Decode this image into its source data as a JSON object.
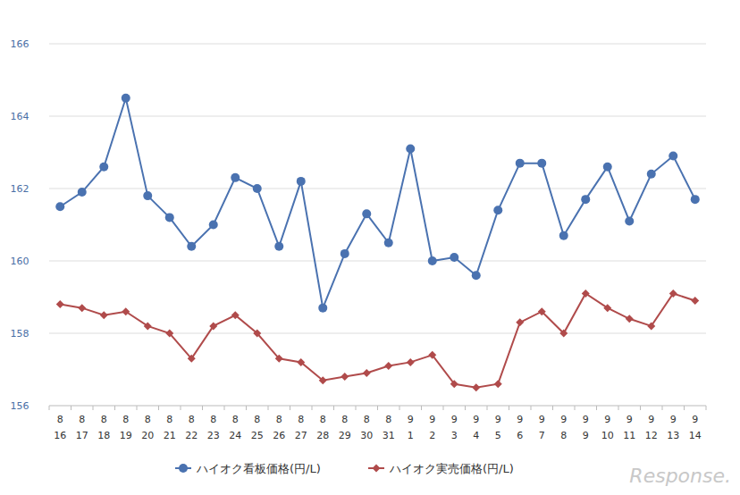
{
  "chart_data": {
    "type": "line",
    "categories": [
      "8\n16",
      "8\n17",
      "8\n18",
      "8\n19",
      "8\n20",
      "8\n21",
      "8\n22",
      "8\n23",
      "8\n24",
      "8\n25",
      "8\n26",
      "8\n27",
      "8\n28",
      "8\n29",
      "8\n30",
      "8\n31",
      "9\n1",
      "9\n2",
      "9\n3",
      "9\n4",
      "9\n5",
      "9\n6",
      "9\n7",
      "9\n8",
      "9\n9",
      "9\n10",
      "9\n11",
      "9\n12",
      "9\n13",
      "9\n14"
    ],
    "series": [
      {
        "name": "ハイオク看板価格(円/L)",
        "color": "#4a72b0",
        "marker": "circle",
        "values": [
          161.5,
          161.9,
          162.6,
          164.5,
          161.8,
          161.2,
          160.4,
          161.0,
          162.3,
          162.0,
          160.4,
          162.2,
          158.7,
          160.2,
          161.3,
          160.5,
          163.1,
          160.0,
          160.1,
          159.6,
          161.4,
          162.7,
          162.7,
          160.7,
          161.7,
          162.6,
          161.1,
          162.4,
          162.9,
          161.7
        ]
      },
      {
        "name": "ハイオク実売価格(円/L)",
        "color": "#b04b4b",
        "marker": "diamond",
        "values": [
          158.8,
          158.7,
          158.5,
          158.6,
          158.2,
          158.0,
          157.3,
          158.2,
          158.5,
          158.0,
          157.3,
          157.2,
          156.7,
          156.8,
          156.9,
          157.1,
          157.2,
          157.4,
          156.6,
          156.5,
          156.6,
          158.3,
          158.6,
          158.0,
          159.1,
          158.7,
          158.4,
          158.2,
          159.1,
          158.9
        ]
      }
    ],
    "ylim": [
      156,
      166
    ],
    "yticks": [
      156,
      158,
      160,
      162,
      164,
      166
    ],
    "grid": true,
    "legend": "bottom",
    "annotations": [
      "Response."
    ]
  }
}
